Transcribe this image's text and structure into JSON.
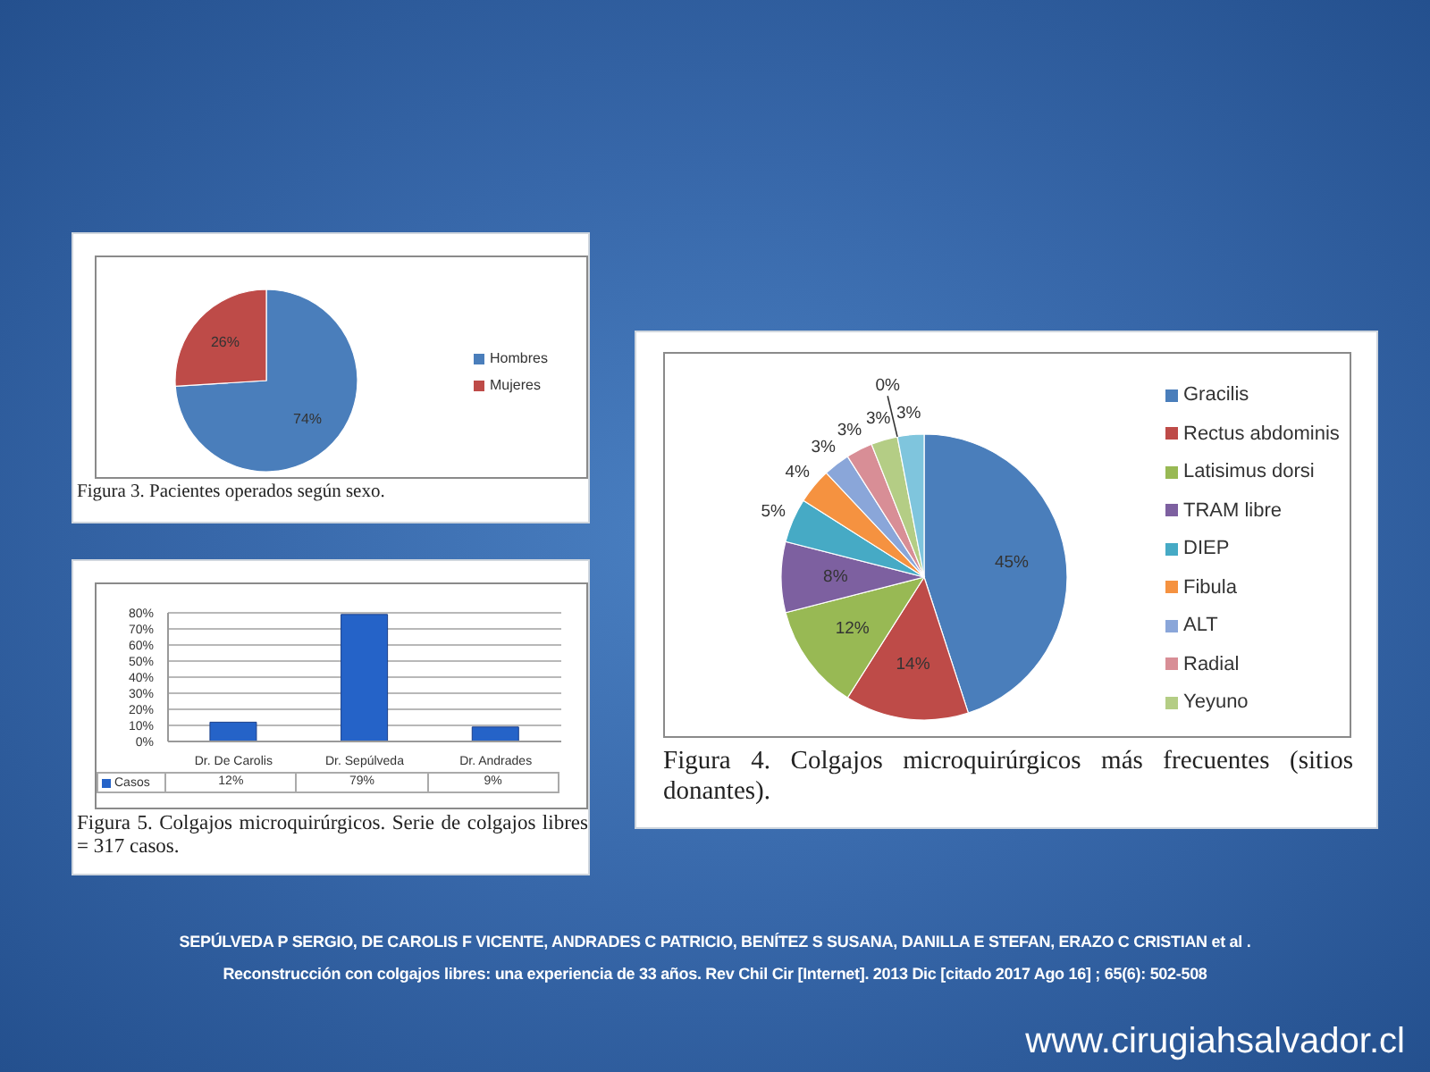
{
  "chart_data": [
    {
      "type": "pie",
      "title": "Figura 3. Pacientes operados según sexo.",
      "categories": [
        "Hombres",
        "Mujeres"
      ],
      "values": [
        74,
        26
      ],
      "colors": [
        "#4a7ebb",
        "#be4b48"
      ],
      "value_labels": [
        "74%",
        "26%"
      ],
      "legend": "right"
    },
    {
      "type": "pie",
      "title": "Figura 4. Colgajos microquirúrgicos más frecuentes (sitios donantes).",
      "categories": [
        "Gracilis",
        "Rectus abdominis",
        "Latisimus dorsi",
        "TRAM libre",
        "DIEP",
        "Fibula",
        "ALT",
        "Radial",
        "Yeyuno",
        null,
        null
      ],
      "values": [
        45,
        14,
        12,
        8,
        5,
        4,
        3,
        3,
        3,
        0,
        3
      ],
      "colors": [
        "#4a7ebb",
        "#be4b48",
        "#98b954",
        "#7d60a0",
        "#46aac5",
        "#f59240",
        "#8aa6d9",
        "#d88e96",
        "#b4cd85",
        "#9d8fbf",
        "#7fc5dd"
      ],
      "value_labels": [
        "45%",
        "14%",
        "12%",
        "8%",
        "5%",
        "4%",
        "3%",
        "3%",
        "3%",
        "0%",
        "3%"
      ],
      "legend": "right"
    },
    {
      "type": "bar",
      "title": "Figura 5. Colgajos microquirúrgicos. Serie de colgajos libres = 317 casos.",
      "categories": [
        "Dr. De Carolis",
        "Dr. Sepúlveda",
        "Dr. Andrades"
      ],
      "series": [
        {
          "name": "Casos",
          "color": "#2563c8",
          "values": [
            12,
            79,
            9
          ],
          "value_labels": [
            "12%",
            "79%",
            "9%"
          ]
        }
      ],
      "ylim": [
        0,
        80
      ],
      "yticks": [
        {
          "value": 0,
          "label": "0%"
        },
        {
          "value": 10,
          "label": "10%"
        },
        {
          "value": 20,
          "label": "20%"
        },
        {
          "value": 30,
          "label": "30%"
        },
        {
          "value": 40,
          "label": "40%"
        },
        {
          "value": 50,
          "label": "50%"
        },
        {
          "value": 60,
          "label": "60%"
        },
        {
          "value": 70,
          "label": "70%"
        },
        {
          "value": 80,
          "label": "80%"
        }
      ],
      "grid": "y",
      "legend": "bottom",
      "annotations": [
        "SEPÚLVEDA P SERGIO, DE CAROLIS F VICENTE, ANDRADES C PATRICIO, BENÍTEZ S SUSANA, DANILLA E STEFAN, ERAZO C CRISTIAN et al .",
        "Reconstrucción con colgajos libres: una experiencia de 33 años. Rev Chil Cir [Internet]. 2013 Dic [citado 2017 Ago 16] ; 65(6): 502-508",
        "www.cirugiahsalvador.cl"
      ]
    }
  ]
}
